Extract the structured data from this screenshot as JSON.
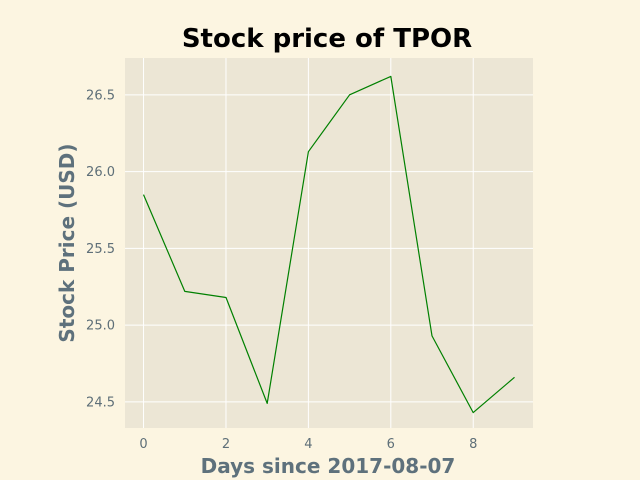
{
  "chart_data": {
    "type": "line",
    "title": "Stock price of TPOR",
    "xlabel": "Days since 2017-08-07",
    "ylabel": "Stock Price (USD)",
    "x": [
      0,
      1,
      2,
      3,
      4,
      5,
      6,
      7,
      8,
      9
    ],
    "series": [
      {
        "values": [
          25.85,
          25.22,
          25.18,
          24.49,
          26.13,
          26.5,
          26.62,
          24.93,
          24.43,
          24.66
        ],
        "color": "#008000"
      }
    ],
    "xlim": [
      -0.45,
      9.45
    ],
    "ylim": [
      24.33,
      26.74
    ],
    "xticks": [
      0,
      2,
      4,
      6,
      8
    ],
    "yticks": [
      24.5,
      25.0,
      25.5,
      26.0,
      26.5
    ],
    "xtick_labels": [
      "0",
      "2",
      "4",
      "6",
      "8"
    ],
    "ytick_labels": [
      "24.5",
      "25.0",
      "25.5",
      "26.0",
      "26.5"
    ],
    "grid": true,
    "colors": {
      "figure_background": "#fcf5e1",
      "plot_background": "#ece6d5",
      "grid": "#ffffff",
      "title": "#000000",
      "axis_label": "#5e717c",
      "tick_label": "#5e6f78"
    }
  }
}
